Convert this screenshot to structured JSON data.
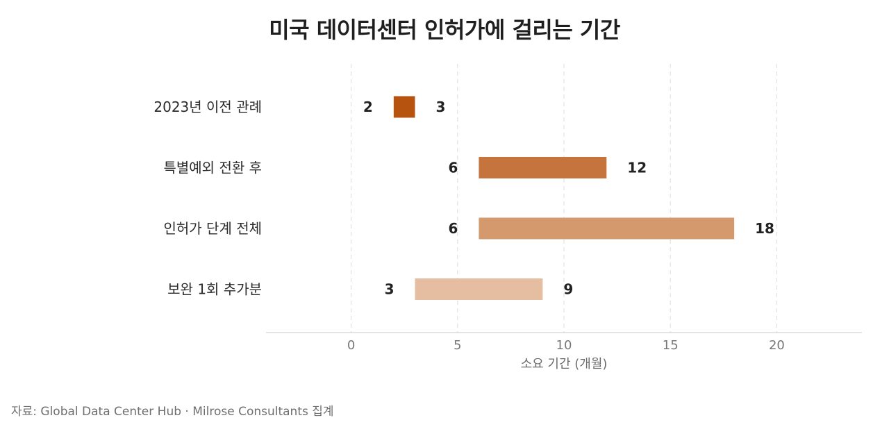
{
  "chart_data": {
    "type": "bar",
    "orientation": "horizontal",
    "subtype": "range",
    "title": "미국 데이터센터 인허가에 걸리는 기간",
    "xlabel": "소요 기간 (개월)",
    "ylabel": "",
    "xlim": [
      -4,
      24
    ],
    "xticks": [
      0,
      5,
      10,
      15,
      20
    ],
    "grid": "vertical-dashed",
    "categories": [
      "2023년 이전 관례",
      "특별예외 전환 후",
      "인허가 단계 전체",
      "보완 1회 추가분"
    ],
    "ranges": [
      {
        "start": 2,
        "end": 3,
        "start_label": "2",
        "end_label": "3",
        "color": "#b5530f"
      },
      {
        "start": 6,
        "end": 12,
        "start_label": "6",
        "end_label": "12",
        "color": "#c4743c"
      },
      {
        "start": 6,
        "end": 18,
        "start_label": "6",
        "end_label": "18",
        "color": "#d4996d"
      },
      {
        "start": 3,
        "end": 9,
        "start_label": "3",
        "end_label": "9",
        "color": "#e5bea1"
      }
    ]
  },
  "source": "자료: Global Data Center Hub · Milrose Consultants 집계"
}
